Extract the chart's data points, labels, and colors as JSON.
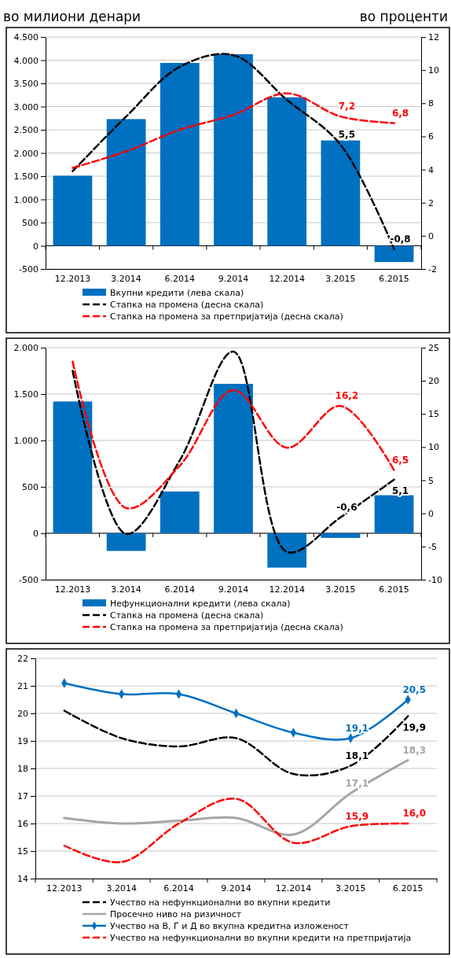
{
  "chart_data": [
    {
      "type": "bar",
      "ylabel": "во милиони денари",
      "y2label": "во проценти",
      "categories": [
        "12.2013",
        "3.2014",
        "6.2014",
        "9.2014",
        "12.2014",
        "3.2015",
        "6.2015"
      ],
      "series": [
        {
          "name": "Вкупни кредити (лева скала)",
          "color": "#0070c0",
          "values": [
            1510,
            2730,
            3940,
            4130,
            3200,
            2270,
            -350
          ]
        },
        {
          "name": "Стапка на промена (десна скала)",
          "type": "line",
          "axis": "y2",
          "color": "#000000",
          "line_style": "dashed",
          "values": [
            3.9,
            7.2,
            10.2,
            10.9,
            8.2,
            5.5,
            -0.8
          ],
          "value_labels": [
            null,
            null,
            null,
            null,
            null,
            "5,5",
            "-0,8"
          ]
        },
        {
          "name": "Стапка на промена за претпријатија (десна скала)",
          "type": "line",
          "axis": "y2",
          "color": "#ff0000",
          "line_style": "dashed",
          "values": [
            4.1,
            5.1,
            6.4,
            7.3,
            8.6,
            7.2,
            6.8
          ],
          "value_labels": [
            null,
            null,
            null,
            null,
            null,
            "7,2",
            "6,8"
          ]
        }
      ],
      "ylim": [
        -500,
        4500
      ],
      "yticks": [
        {
          "value": -500,
          "label": "-500"
        },
        0,
        500,
        {
          "value": 1000,
          "label": "1.000"
        },
        {
          "value": 1500,
          "label": "1.500"
        },
        {
          "value": 2000,
          "label": "2.000"
        },
        {
          "value": 2500,
          "label": "2.500"
        },
        {
          "value": 3000,
          "label": "3.000"
        },
        {
          "value": 3500,
          "label": "3.500"
        },
        {
          "value": 4000,
          "label": "4.000"
        },
        {
          "value": 4500,
          "label": "4.500"
        }
      ],
      "y2lim": [
        -2,
        12
      ],
      "y2ticks": [
        -2,
        0,
        2,
        4,
        6,
        8,
        10,
        12
      ],
      "grid": "y",
      "legend": "bottom"
    },
    {
      "type": "bar",
      "categories": [
        "12.2013",
        "3.2014",
        "6.2014",
        "9.2014",
        "12.2014",
        "3.2015",
        "6.2015"
      ],
      "series": [
        {
          "name": "Нефункционални кредити (лева скала)",
          "color": "#0070c0",
          "values": [
            1420,
            -190,
            450,
            1610,
            -370,
            -50,
            410
          ]
        },
        {
          "name": "Стапка на промена (десна скала)",
          "type": "line",
          "axis": "y2",
          "color": "#000000",
          "line_style": "dashed",
          "values": [
            21.5,
            -3.1,
            8.0,
            24.4,
            -5.8,
            -0.6,
            5.1
          ],
          "value_labels": [
            null,
            null,
            null,
            null,
            null,
            "-0,6",
            "5,1"
          ]
        },
        {
          "name": "Стапка на промена за претпријатија (десна скала)",
          "type": "line",
          "axis": "y2",
          "color": "#ff0000",
          "line_style": "dashed",
          "values": [
            22.9,
            0.8,
            7.2,
            18.6,
            9.9,
            16.2,
            6.5
          ],
          "value_labels": [
            null,
            null,
            null,
            null,
            null,
            "16,2",
            "6,5"
          ]
        }
      ],
      "ylim": [
        -500,
        2000
      ],
      "yticks": [
        {
          "value": -500,
          "label": "-500"
        },
        0,
        500,
        {
          "value": 1000,
          "label": "1.000"
        },
        {
          "value": 1500,
          "label": "1.500"
        },
        {
          "value": 2000,
          "label": "2.000"
        }
      ],
      "y2lim": [
        -10,
        25
      ],
      "y2ticks": [
        -10,
        -5,
        0,
        5,
        10,
        15,
        20,
        25
      ],
      "grid": "y",
      "legend": "bottom"
    },
    {
      "type": "line",
      "categories": [
        "12.2013",
        "3.2014",
        "6.2014",
        "9.2014",
        "12.2014",
        "3.2015",
        "6.2015"
      ],
      "series": [
        {
          "name": "Учество на нефункционални во вкупни кредити",
          "color": "#000000",
          "line_style": "dashed",
          "values": [
            20.1,
            19.1,
            18.8,
            19.1,
            17.8,
            18.1,
            19.9
          ],
          "value_labels": [
            null,
            null,
            null,
            null,
            null,
            "18,1",
            "19,9"
          ]
        },
        {
          "name": "Просечно ниво на ризичност",
          "color": "#a6a6a6",
          "values": [
            16.2,
            16.0,
            16.1,
            16.2,
            15.6,
            17.1,
            18.3
          ],
          "value_labels": [
            null,
            null,
            null,
            null,
            null,
            "17,1",
            "18,3"
          ]
        },
        {
          "name": "Учество на В, Г и Д во вкупна кредитна изложеност",
          "color": "#0070c0",
          "marker": "diamond",
          "values": [
            21.1,
            20.7,
            20.7,
            20.0,
            19.3,
            19.1,
            20.5
          ],
          "value_labels": [
            null,
            null,
            null,
            null,
            null,
            "19,1",
            "20,5"
          ]
        },
        {
          "name": "Учество на нефункционални во вкупни кредити на претпријатија",
          "color": "#ff0000",
          "line_style": "dashed",
          "values": [
            15.2,
            14.6,
            16.0,
            16.9,
            15.3,
            15.9,
            16.0
          ],
          "value_labels": [
            null,
            null,
            null,
            null,
            null,
            "15,9",
            "16,0"
          ]
        }
      ],
      "ylim": [
        14,
        22
      ],
      "yticks": [
        14,
        15,
        16,
        17,
        18,
        19,
        20,
        21,
        22
      ],
      "grid": "y",
      "legend": "bottom"
    }
  ]
}
